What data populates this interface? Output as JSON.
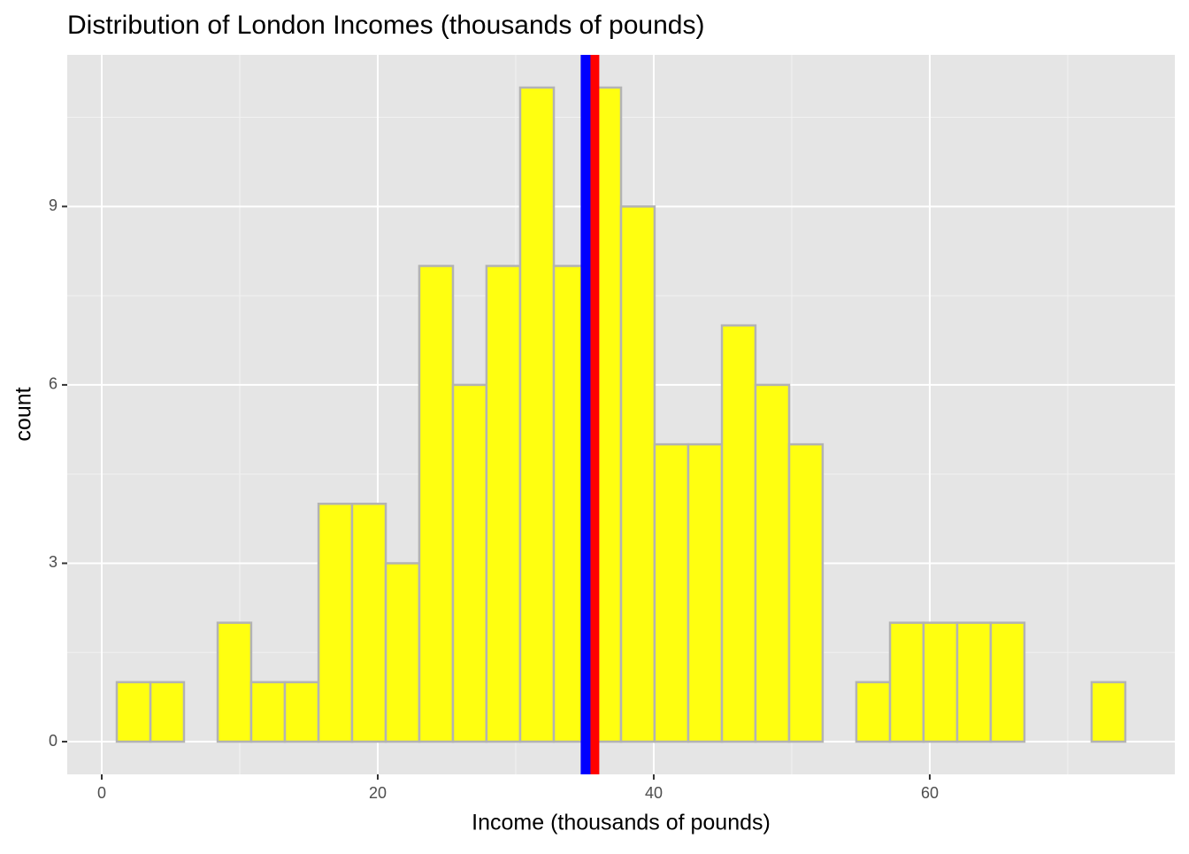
{
  "chart_data": {
    "type": "histogram",
    "title": "Distribution of London Incomes (thousands of pounds)",
    "x_label": "Income (thousands of pounds)",
    "y_label": "count",
    "bins": [
      1.09,
      3.53,
      5.96,
      8.4,
      10.83,
      13.27,
      15.71,
      18.14,
      20.58,
      23.01,
      25.45,
      27.88,
      30.32,
      32.76,
      35.19,
      37.63,
      40.06,
      42.5,
      44.94,
      47.37,
      49.81,
      52.24,
      54.68,
      57.12,
      59.55,
      61.99,
      64.42,
      66.86,
      69.29,
      71.73,
      74.17
    ],
    "values": [
      1,
      1,
      0,
      2,
      1,
      1,
      4,
      4,
      3,
      8,
      6,
      8,
      11,
      8,
      11,
      9,
      5,
      5,
      7,
      6,
      5,
      0,
      1,
      2,
      2,
      2,
      2,
      0,
      0,
      1
    ],
    "color": "#ffff10",
    "edge_color": "#b3b3b3",
    "vlines": [
      {
        "value": 35.7,
        "color": "#ff0000"
      },
      {
        "value": 35.06,
        "color": "#0000ff"
      }
    ],
    "xlim": [
      -2.5,
      77.76
    ],
    "ylim": [
      -0.55,
      11.55
    ],
    "xticks": [
      0,
      20,
      40,
      60
    ],
    "yticks": [
      0,
      3,
      6,
      9
    ],
    "grid": true,
    "minor_grid": true
  }
}
